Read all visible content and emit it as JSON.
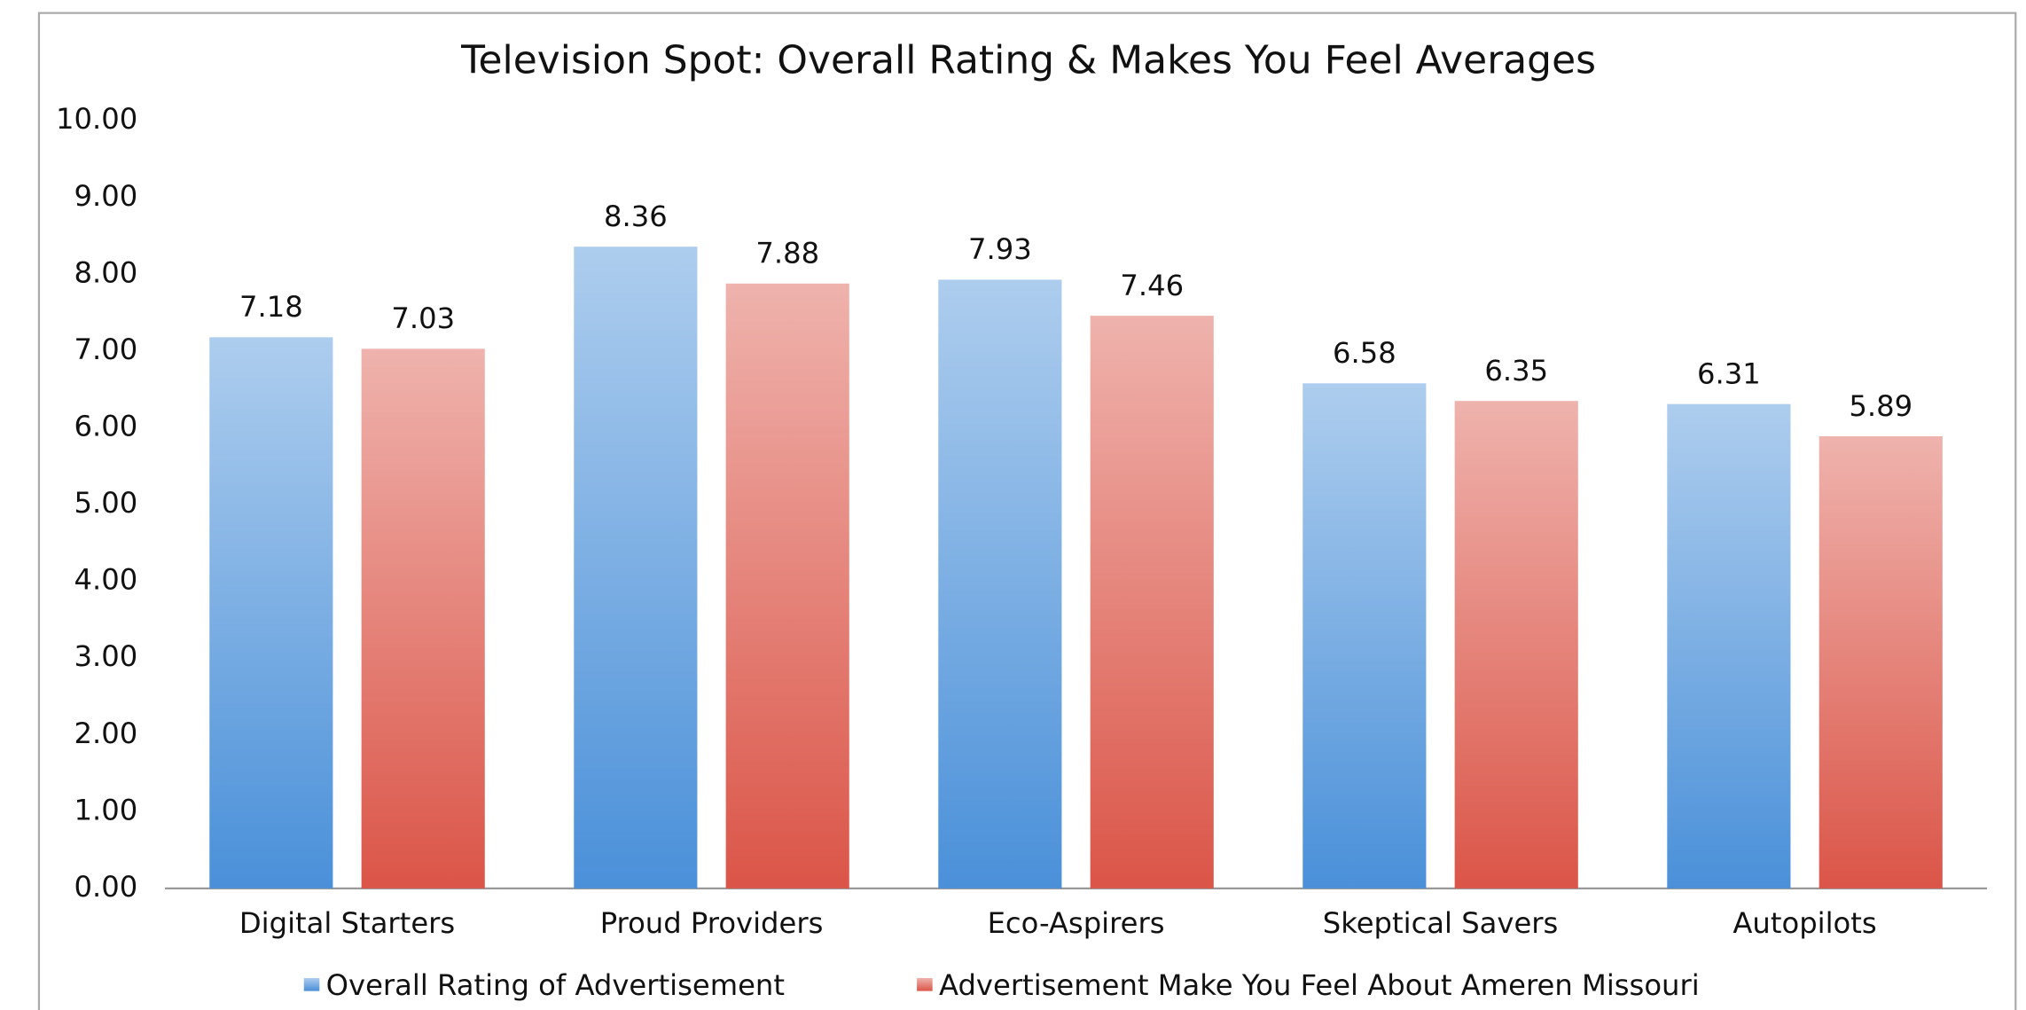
{
  "chart_data": {
    "type": "bar",
    "title": "Television Spot: Overall Rating & Makes You Feel Averages",
    "categories": [
      "Digital Starters",
      "Proud Providers",
      "Eco-Aspirers",
      "Skeptical Savers",
      "Autopilots"
    ],
    "series": [
      {
        "name": "Overall Rating of Advertisement",
        "color": "#4a90d9",
        "values": [
          7.18,
          8.36,
          7.93,
          6.58,
          6.31
        ]
      },
      {
        "name": "Advertisement Make You Feel About Ameren Missouri",
        "color": "#db5548",
        "values": [
          7.03,
          7.88,
          7.46,
          6.35,
          5.89
        ]
      }
    ],
    "ylim": [
      0,
      10
    ],
    "yticks": [
      {
        "value": 0,
        "label": "0.00"
      },
      {
        "value": 1,
        "label": "1.00"
      },
      {
        "value": 2,
        "label": "2.00"
      },
      {
        "value": 3,
        "label": "3.00"
      },
      {
        "value": 4,
        "label": "4.00"
      },
      {
        "value": 5,
        "label": "5.00"
      },
      {
        "value": 6,
        "label": "6.00"
      },
      {
        "value": 7,
        "label": "7.00"
      },
      {
        "value": 8,
        "label": "8.00"
      },
      {
        "value": 9,
        "label": "9.00"
      },
      {
        "value": 10,
        "label": "10.00"
      }
    ],
    "grid": false,
    "legend": "bottom"
  }
}
